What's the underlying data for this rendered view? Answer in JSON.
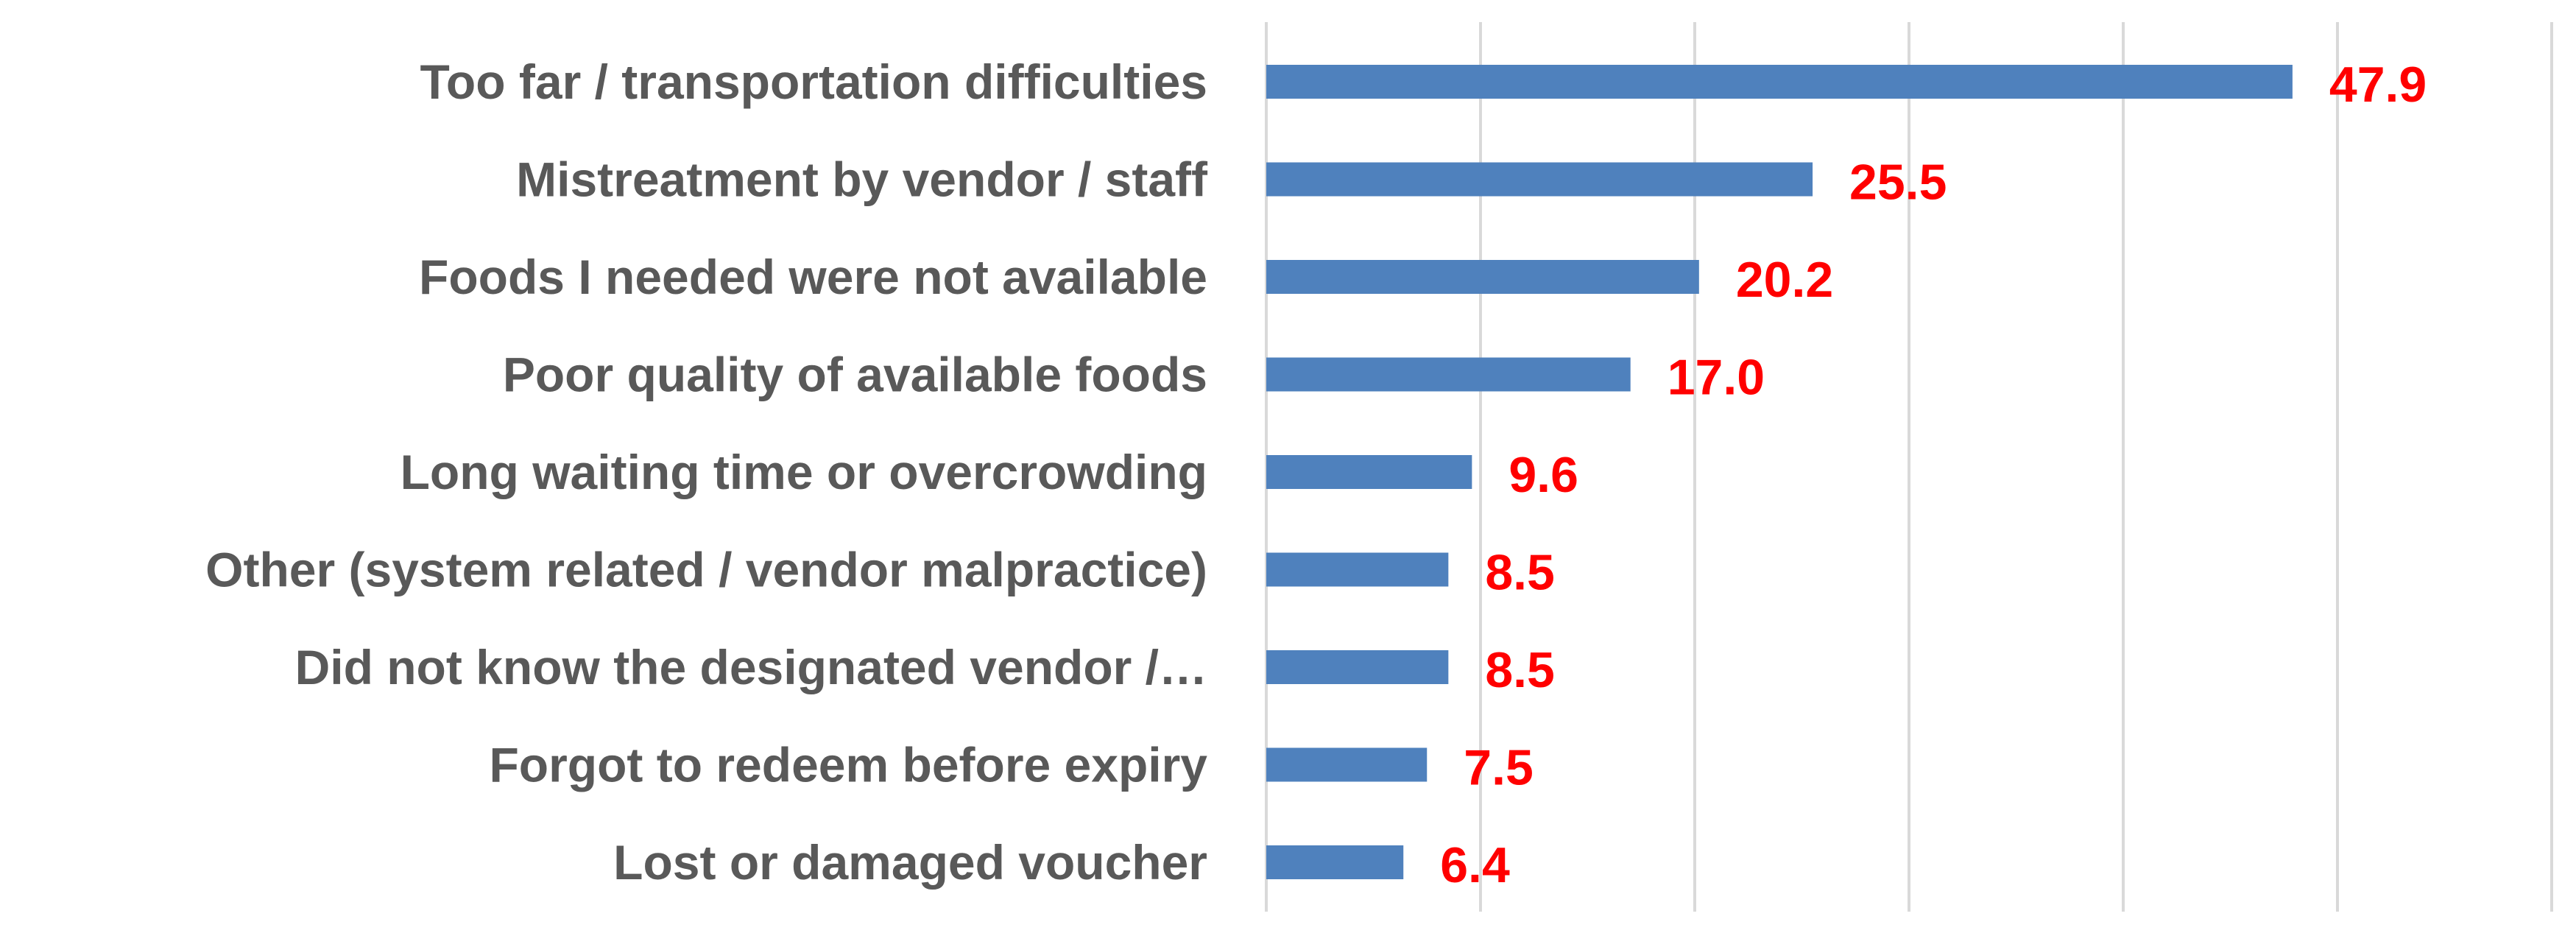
{
  "chart_data": {
    "type": "bar",
    "orientation": "horizontal",
    "categories": [
      "Too far / transportation difficulties",
      "Mistreatment by vendor / staff",
      "Foods I needed were not available",
      "Poor quality of available foods",
      "Long waiting time or overcrowding",
      "Other (system related / vendor malpractice)",
      "Did not know the designated vendor /…",
      "Forgot to redeem before expiry",
      "Lost or damaged voucher"
    ],
    "values": [
      47.9,
      25.5,
      20.2,
      17.0,
      9.6,
      8.5,
      8.5,
      7.5,
      6.4
    ],
    "value_labels": [
      "47.9",
      "25.5",
      "20.2",
      "17.0",
      "9.6",
      "8.5",
      "8.5",
      "7.5",
      "6.4"
    ],
    "xlim": [
      0,
      60
    ],
    "grid": true,
    "gridline_step": 10,
    "legend": "none",
    "bar_color": "#4F81BD",
    "label_color": "#FF0000",
    "category_label_color": "#595959",
    "grid_color": "#D9D9D9"
  }
}
